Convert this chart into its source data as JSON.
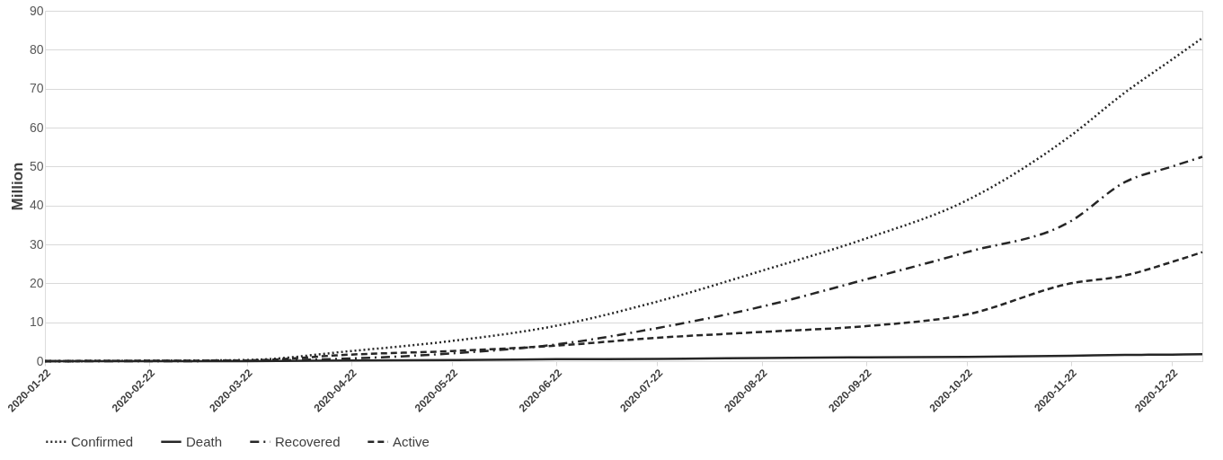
{
  "chart_data": {
    "type": "line",
    "ylabel": "Million",
    "xlim": [
      "2020-01-22",
      "2020-12-31"
    ],
    "xticks": [
      "2020-01-22",
      "2020-02-22",
      "2020-03-22",
      "2020-04-22",
      "2020-05-22",
      "2020-06-22",
      "2020-07-22",
      "2020-08-22",
      "2020-09-22",
      "2020-10-22",
      "2020-11-22",
      "2020-12-22"
    ],
    "ylim": [
      0,
      90
    ],
    "yticks": [
      0,
      10,
      20,
      30,
      40,
      50,
      60,
      70,
      80,
      90
    ],
    "grid": "y",
    "legend": "bottom",
    "x": [
      "2020-01-22",
      "2020-02-22",
      "2020-03-22",
      "2020-04-22",
      "2020-05-22",
      "2020-06-22",
      "2020-07-22",
      "2020-08-22",
      "2020-09-22",
      "2020-10-22",
      "2020-11-22",
      "2020-12-08",
      "2020-12-22",
      "2020-12-31"
    ],
    "series": [
      {
        "name": "Confirmed",
        "color": "#262626",
        "line_style": "dotted",
        "values": [
          0,
          0.1,
          0.3,
          2.6,
          5.2,
          9.1,
          15.3,
          23.2,
          31.5,
          41.3,
          58,
          69,
          77.5,
          83
        ]
      },
      {
        "name": "Death",
        "color": "#262626",
        "line_style": "solid",
        "values": [
          0,
          0,
          0,
          0.2,
          0.3,
          0.5,
          0.6,
          0.8,
          1.0,
          1.1,
          1.4,
          1.6,
          1.7,
          1.8
        ]
      },
      {
        "name": "Recovered",
        "color": "#262626",
        "line_style": "dashdot",
        "values": [
          0,
          0,
          0.1,
          0.7,
          2.0,
          4.3,
          8.5,
          14.0,
          21.0,
          28.0,
          36,
          46,
          50,
          52.5
        ]
      },
      {
        "name": "Active",
        "color": "#262626",
        "line_style": "dashed",
        "values": [
          0,
          0.1,
          0.2,
          1.7,
          2.6,
          4.0,
          6.0,
          7.5,
          9.0,
          12,
          20,
          22,
          25.5,
          28
        ]
      }
    ]
  }
}
